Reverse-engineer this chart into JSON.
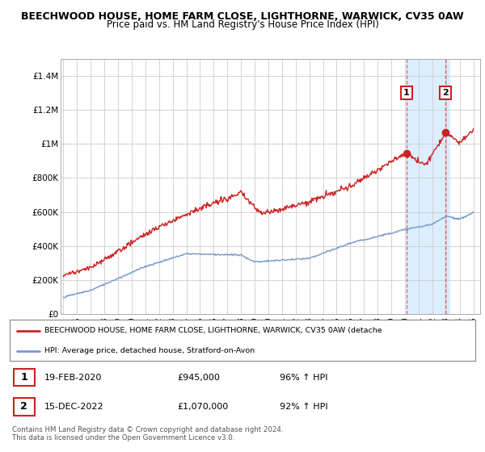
{
  "title": "BEECHWOOD HOUSE, HOME FARM CLOSE, LIGHTHORNE, WARWICK, CV35 0AW",
  "subtitle": "Price paid vs. HM Land Registry's House Price Index (HPI)",
  "title_fontsize": 9.0,
  "subtitle_fontsize": 8.5,
  "ylabel_ticks": [
    "£0",
    "£200K",
    "£400K",
    "£600K",
    "£800K",
    "£1M",
    "£1.2M",
    "£1.4M"
  ],
  "ytick_values": [
    0,
    200000,
    400000,
    600000,
    800000,
    1000000,
    1200000,
    1400000
  ],
  "ylim": [
    0,
    1500000
  ],
  "xlim_start": 1994.8,
  "xlim_end": 2025.5,
  "background_color": "#ffffff",
  "grid_color": "#cccccc",
  "hpi_color": "#7799cc",
  "price_color": "#cc2222",
  "highlight_bg": "#ddeeff",
  "sale1_date": 2020.12,
  "sale1_price": 945000,
  "sale2_date": 2022.96,
  "sale2_price": 1070000,
  "legend_price_label": "BEECHWOOD HOUSE, HOME FARM CLOSE, LIGHTHORNE, WARWICK, CV35 0AW (detache",
  "legend_hpi_label": "HPI: Average price, detached house, Stratford-on-Avon",
  "table_row1": [
    "1",
    "19-FEB-2020",
    "£945,000",
    "96% ↑ HPI"
  ],
  "table_row2": [
    "2",
    "15-DEC-2022",
    "£1,070,000",
    "92% ↑ HPI"
  ],
  "footer": "Contains HM Land Registry data © Crown copyright and database right 2024.\nThis data is licensed under the Open Government Licence v3.0."
}
